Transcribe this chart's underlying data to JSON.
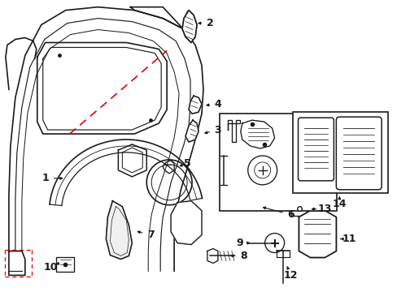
{
  "background_color": "#ffffff",
  "line_color": "#1a1a1a",
  "red_color": "#dd0000",
  "figsize": [
    4.89,
    3.6
  ],
  "dpi": 100
}
